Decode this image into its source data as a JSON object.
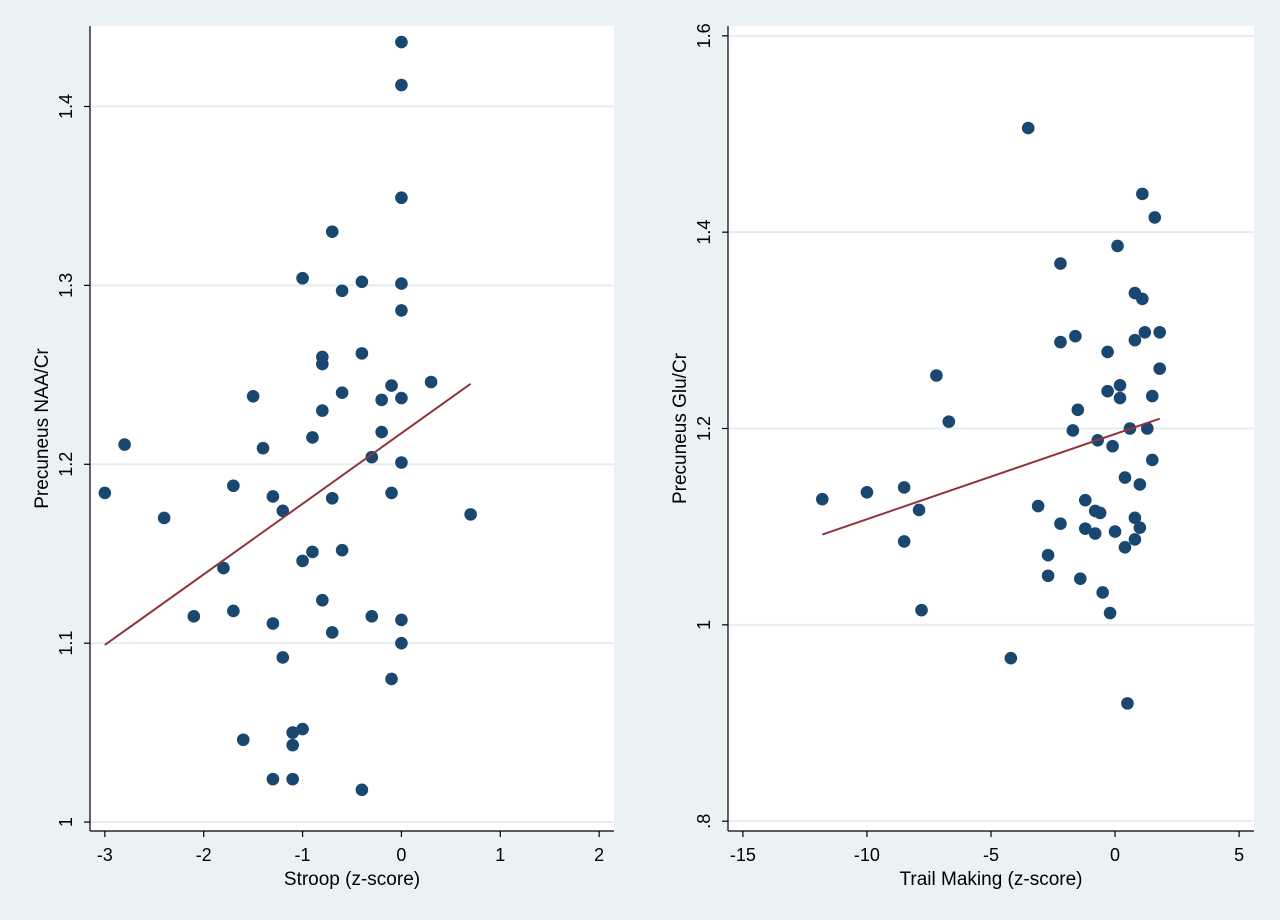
{
  "colors": {
    "background": "#eaf2f3",
    "plot_background": "#ffffff",
    "gridline": "#e3eef1",
    "point": "#1a476f",
    "fit_line": "#90353b",
    "axis": "#000000"
  },
  "chart_data": [
    {
      "type": "scatter",
      "xlabel": "Stroop (z-score)",
      "ylabel": "Precuneus NAA/Cr",
      "xlim": [
        -3.15,
        2.15
      ],
      "ylim": [
        0.995,
        1.445
      ],
      "x_ticks": [
        -3,
        -2,
        -1,
        0,
        1,
        2
      ],
      "x_tick_labels": [
        "-3",
        "-2",
        "-1",
        "0",
        "1",
        "2"
      ],
      "y_ticks": [
        1.0,
        1.1,
        1.2,
        1.3,
        1.4
      ],
      "y_tick_labels": [
        "1",
        "1.1",
        "1.2",
        "1.3",
        "1.4"
      ],
      "grid": "horizontal",
      "points": [
        {
          "x": -3.0,
          "y": 1.184
        },
        {
          "x": -2.8,
          "y": 1.211
        },
        {
          "x": -2.4,
          "y": 1.17
        },
        {
          "x": -2.1,
          "y": 1.115
        },
        {
          "x": -1.8,
          "y": 1.142
        },
        {
          "x": -1.7,
          "y": 1.188
        },
        {
          "x": -1.7,
          "y": 1.118
        },
        {
          "x": -1.6,
          "y": 1.046
        },
        {
          "x": -1.5,
          "y": 1.238
        },
        {
          "x": -1.4,
          "y": 1.209
        },
        {
          "x": -1.3,
          "y": 1.182
        },
        {
          "x": -1.3,
          "y": 1.111
        },
        {
          "x": -1.3,
          "y": 1.024
        },
        {
          "x": -1.2,
          "y": 1.174
        },
        {
          "x": -1.2,
          "y": 1.092
        },
        {
          "x": -1.1,
          "y": 1.05
        },
        {
          "x": -1.1,
          "y": 1.043
        },
        {
          "x": -1.1,
          "y": 1.024
        },
        {
          "x": -1.0,
          "y": 1.304
        },
        {
          "x": -1.0,
          "y": 1.146
        },
        {
          "x": -1.0,
          "y": 1.052
        },
        {
          "x": -0.9,
          "y": 1.215
        },
        {
          "x": -0.9,
          "y": 1.151
        },
        {
          "x": -0.8,
          "y": 1.26
        },
        {
          "x": -0.8,
          "y": 1.256
        },
        {
          "x": -0.8,
          "y": 1.23
        },
        {
          "x": -0.8,
          "y": 1.124
        },
        {
          "x": -0.7,
          "y": 1.33
        },
        {
          "x": -0.7,
          "y": 1.181
        },
        {
          "x": -0.7,
          "y": 1.106
        },
        {
          "x": -0.6,
          "y": 1.297
        },
        {
          "x": -0.6,
          "y": 1.24
        },
        {
          "x": -0.6,
          "y": 1.152
        },
        {
          "x": -0.4,
          "y": 1.302
        },
        {
          "x": -0.4,
          "y": 1.262
        },
        {
          "x": -0.4,
          "y": 1.018
        },
        {
          "x": -0.3,
          "y": 1.204
        },
        {
          "x": -0.3,
          "y": 1.115
        },
        {
          "x": -0.2,
          "y": 1.236
        },
        {
          "x": -0.2,
          "y": 1.218
        },
        {
          "x": -0.1,
          "y": 1.244
        },
        {
          "x": -0.1,
          "y": 1.184
        },
        {
          "x": -0.1,
          "y": 1.08
        },
        {
          "x": 0.0,
          "y": 1.436
        },
        {
          "x": 0.0,
          "y": 1.412
        },
        {
          "x": 0.0,
          "y": 1.349
        },
        {
          "x": 0.0,
          "y": 1.301
        },
        {
          "x": 0.0,
          "y": 1.286
        },
        {
          "x": 0.0,
          "y": 1.237
        },
        {
          "x": 0.0,
          "y": 1.201
        },
        {
          "x": 0.0,
          "y": 1.113
        },
        {
          "x": 0.0,
          "y": 1.1
        },
        {
          "x": 0.3,
          "y": 1.246
        },
        {
          "x": 0.7,
          "y": 1.172
        }
      ],
      "fit_line": [
        {
          "x": -3.0,
          "y": 1.099
        },
        {
          "x": 0.7,
          "y": 1.245
        }
      ]
    },
    {
      "type": "scatter",
      "xlabel": "Trail Making (z-score)",
      "ylabel": "Precuneus Glu/Cr",
      "xlim": [
        -15.6,
        5.6
      ],
      "ylim": [
        0.79,
        1.61
      ],
      "x_ticks": [
        -15,
        -10,
        -5,
        0,
        5
      ],
      "x_tick_labels": [
        "-15",
        "-10",
        "-5",
        "0",
        "5"
      ],
      "y_ticks": [
        0.8,
        1.0,
        1.2,
        1.4,
        1.6
      ],
      "y_tick_labels": [
        ".8",
        "1",
        "1.2",
        "1.4",
        "1.6"
      ],
      "grid": "horizontal",
      "points": [
        {
          "x": -11.8,
          "y": 1.128
        },
        {
          "x": -10.0,
          "y": 1.135
        },
        {
          "x": -8.5,
          "y": 1.14
        },
        {
          "x": -8.5,
          "y": 1.085
        },
        {
          "x": -7.9,
          "y": 1.117
        },
        {
          "x": -7.8,
          "y": 1.015
        },
        {
          "x": -7.2,
          "y": 1.254
        },
        {
          "x": -6.7,
          "y": 1.207
        },
        {
          "x": -4.2,
          "y": 0.966
        },
        {
          "x": -3.5,
          "y": 1.506
        },
        {
          "x": -3.1,
          "y": 1.121
        },
        {
          "x": -2.7,
          "y": 1.071
        },
        {
          "x": -2.7,
          "y": 1.05
        },
        {
          "x": -2.2,
          "y": 1.368
        },
        {
          "x": -2.2,
          "y": 1.288
        },
        {
          "x": -2.2,
          "y": 1.103
        },
        {
          "x": -1.7,
          "y": 1.198
        },
        {
          "x": -1.6,
          "y": 1.294
        },
        {
          "x": -1.5,
          "y": 1.219
        },
        {
          "x": -1.4,
          "y": 1.047
        },
        {
          "x": -1.2,
          "y": 1.127
        },
        {
          "x": -1.2,
          "y": 1.098
        },
        {
          "x": -0.8,
          "y": 1.116
        },
        {
          "x": -0.8,
          "y": 1.093
        },
        {
          "x": -0.7,
          "y": 1.188
        },
        {
          "x": -0.6,
          "y": 1.114
        },
        {
          "x": -0.5,
          "y": 1.033
        },
        {
          "x": -0.3,
          "y": 1.278
        },
        {
          "x": -0.3,
          "y": 1.238
        },
        {
          "x": -0.2,
          "y": 1.012
        },
        {
          "x": -0.1,
          "y": 1.182
        },
        {
          "x": 0.0,
          "y": 1.095
        },
        {
          "x": 0.1,
          "y": 1.386
        },
        {
          "x": 0.2,
          "y": 1.244
        },
        {
          "x": 0.2,
          "y": 1.231
        },
        {
          "x": 0.4,
          "y": 1.15
        },
        {
          "x": 0.4,
          "y": 1.079
        },
        {
          "x": 0.5,
          "y": 0.92
        },
        {
          "x": 0.6,
          "y": 1.2
        },
        {
          "x": 0.8,
          "y": 1.338
        },
        {
          "x": 0.8,
          "y": 1.29
        },
        {
          "x": 0.8,
          "y": 1.109
        },
        {
          "x": 0.8,
          "y": 1.087
        },
        {
          "x": 1.0,
          "y": 1.143
        },
        {
          "x": 1.0,
          "y": 1.099
        },
        {
          "x": 1.1,
          "y": 1.439
        },
        {
          "x": 1.1,
          "y": 1.332
        },
        {
          "x": 1.2,
          "y": 1.298
        },
        {
          "x": 1.3,
          "y": 1.2
        },
        {
          "x": 1.5,
          "y": 1.168
        },
        {
          "x": 1.5,
          "y": 1.233
        },
        {
          "x": 1.6,
          "y": 1.415
        },
        {
          "x": 1.8,
          "y": 1.298
        },
        {
          "x": 1.8,
          "y": 1.261
        }
      ],
      "fit_line": [
        {
          "x": -11.8,
          "y": 1.092
        },
        {
          "x": 1.8,
          "y": 1.21
        }
      ]
    }
  ]
}
